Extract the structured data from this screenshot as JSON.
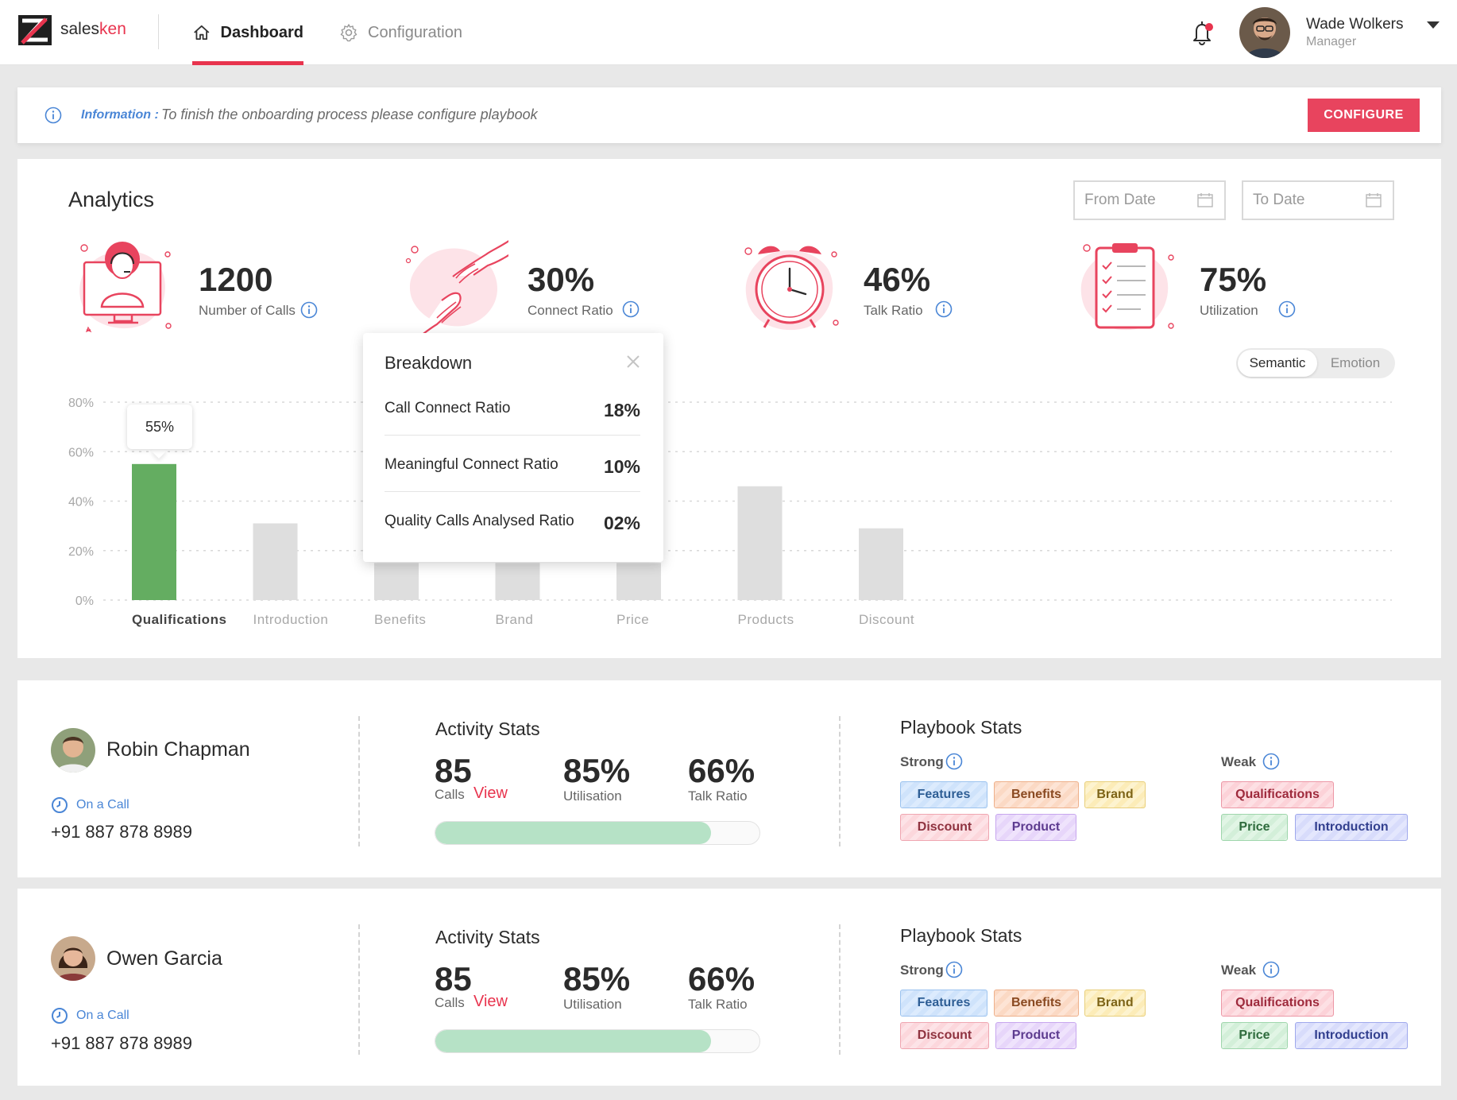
{
  "brand": {
    "name_prefix": "sales",
    "name_suffix": "ken"
  },
  "nav": {
    "dashboard": "Dashboard",
    "configuration": "Configuration"
  },
  "user": {
    "name": "Wade Wolkers",
    "role": "Manager"
  },
  "banner": {
    "label": "Information :",
    "text": "To finish the onboarding process please configure playbook",
    "button": "CONFIGURE"
  },
  "analytics": {
    "title": "Analytics",
    "from_date_placeholder": "From Date",
    "to_date_placeholder": "To Date",
    "kpis": [
      {
        "value": "1200",
        "label": "Number of Calls"
      },
      {
        "value": "30%",
        "label": "Connect Ratio"
      },
      {
        "value": "46%",
        "label": "Talk Ratio"
      },
      {
        "value": "75%",
        "label": "Utilization"
      }
    ],
    "toggle": {
      "active": "Semantic",
      "inactive": "Emotion"
    },
    "breakdown": {
      "title": "Breakdown",
      "rows": [
        {
          "label": "Call Connect Ratio",
          "value": "18%"
        },
        {
          "label": "Meaningful Connect Ratio",
          "value": "10%"
        },
        {
          "label": "Quality Calls Analysed Ratio",
          "value": "02%"
        }
      ]
    },
    "bar_tooltip": "55%"
  },
  "chart_data": {
    "type": "bar",
    "categories": [
      "Qualifications",
      "Introduction",
      "Benefits",
      "Brand",
      "Price",
      "Products",
      "Discount"
    ],
    "values": [
      55,
      31,
      15,
      15,
      15,
      46,
      29
    ],
    "highlighted": "Qualifications",
    "ylim": [
      0,
      80
    ],
    "yticks": [
      "0%",
      "20%",
      "40%",
      "60%",
      "80%"
    ],
    "colors": {
      "highlight": "#64ad61",
      "default": "#dedede"
    },
    "grid": true
  },
  "agents": [
    {
      "name": "Robin Chapman",
      "status": "On a Call",
      "phone": "+91 887 878 8989",
      "activity": {
        "title": "Activity Stats",
        "calls": "85",
        "calls_label": "Calls",
        "view": "View",
        "utilisation": "85%",
        "utilisation_label": "Utilisation",
        "talk_ratio": "66%",
        "talk_ratio_label": "Talk Ratio",
        "progress": 0.85
      },
      "playbook": {
        "title": "Playbook Stats",
        "strong_label": "Strong",
        "weak_label": "Weak",
        "strong": [
          "Features",
          "Benefits",
          "Brand",
          "Discount",
          "Product"
        ],
        "weak": [
          "Qualifications",
          "Price",
          "Introduction"
        ]
      }
    },
    {
      "name": "Owen Garcia",
      "status": "On a Call",
      "phone": "+91 887 878 8989",
      "activity": {
        "title": "Activity Stats",
        "calls": "85",
        "calls_label": "Calls",
        "view": "View",
        "utilisation": "85%",
        "utilisation_label": "Utilisation",
        "talk_ratio": "66%",
        "talk_ratio_label": "Talk Ratio",
        "progress": 0.85
      },
      "playbook": {
        "title": "Playbook Stats",
        "strong_label": "Strong",
        "weak_label": "Weak",
        "strong": [
          "Features",
          "Benefits",
          "Brand",
          "Discount",
          "Product"
        ],
        "weak": [
          "Qualifications",
          "Price",
          "Introduction"
        ]
      }
    }
  ],
  "colors": {
    "accent": "#e8344e",
    "link": "#4a86d6",
    "progress": "#b6e2c6"
  }
}
